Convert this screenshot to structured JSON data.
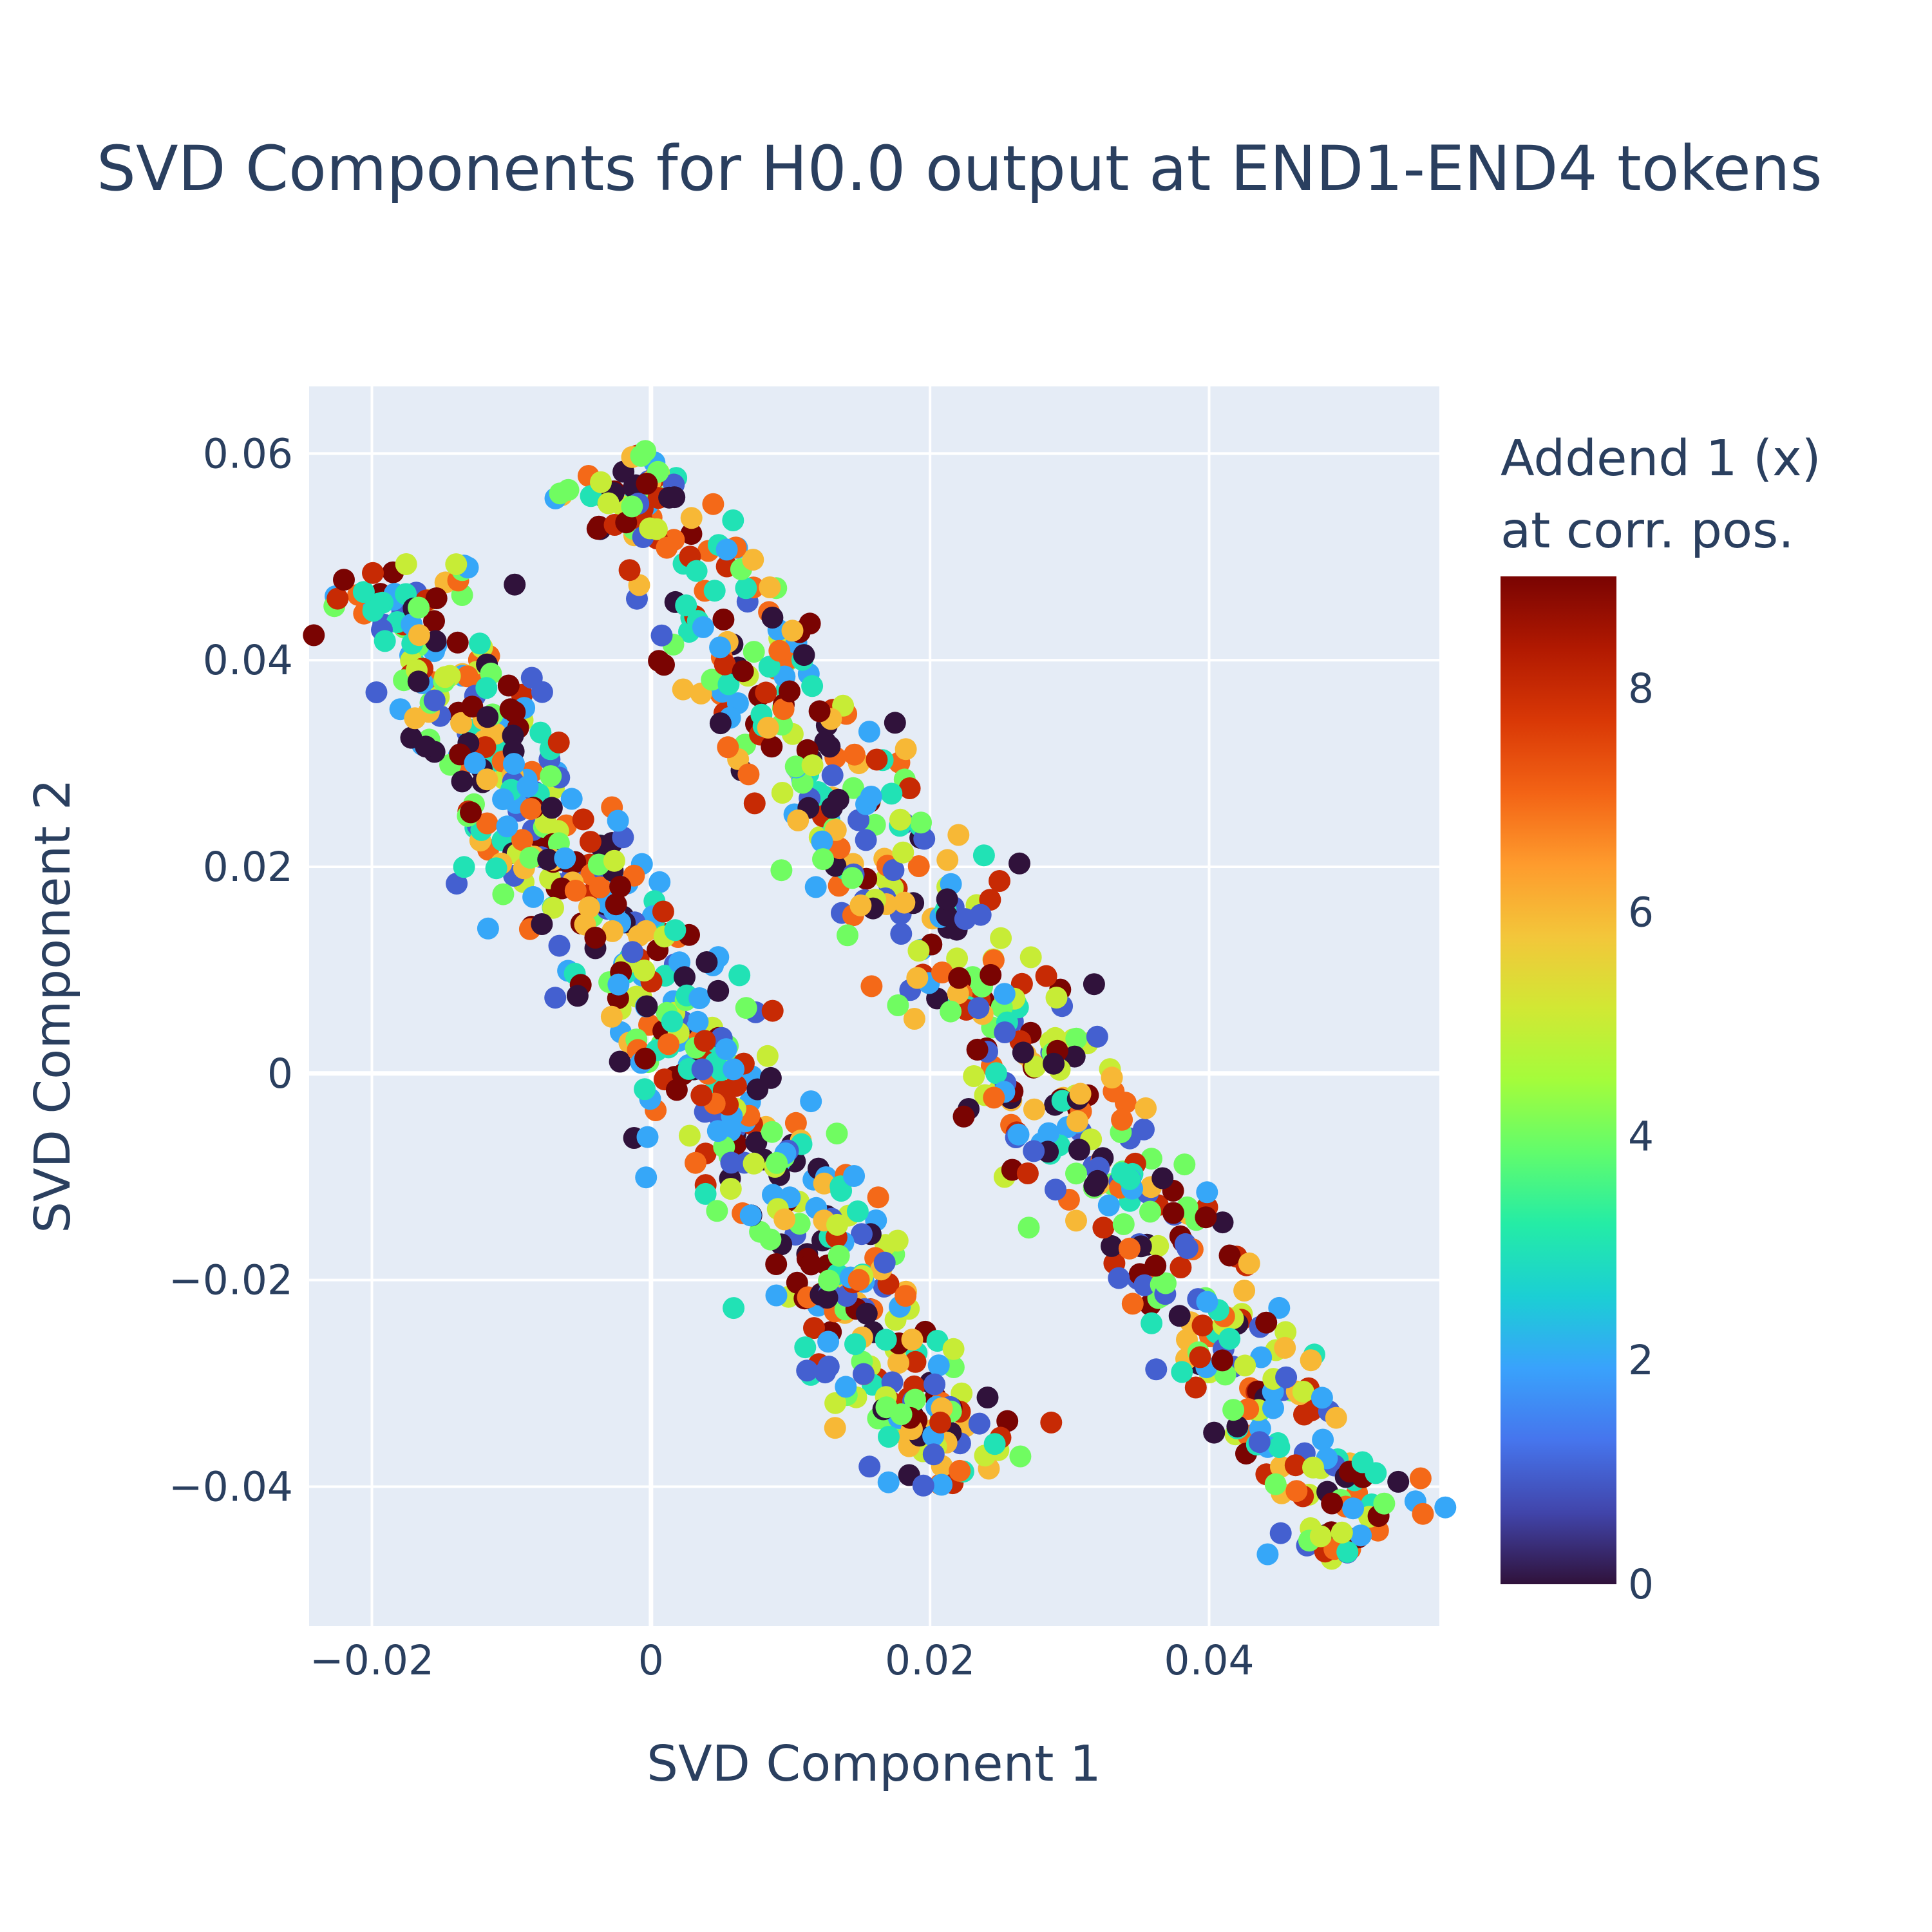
{
  "chart_data": {
    "type": "scatter",
    "title": "SVD Components for H0.0 output at END1-END4 tokens",
    "xlabel": "SVD Component 1",
    "ylabel": "SVD Component 2",
    "xlim": [
      -0.0245,
      0.0565
    ],
    "ylim": [
      -0.0535,
      0.0665
    ],
    "xticks": [
      -0.02,
      0,
      0.02,
      0.04
    ],
    "xtick_labels": [
      "−0.02",
      "0",
      "0.02",
      "0.04"
    ],
    "yticks": [
      -0.04,
      -0.02,
      0,
      0.02,
      0.04,
      0.06
    ],
    "ytick_labels": [
      "−0.04",
      "−0.02",
      "0",
      "0.02",
      "0.04",
      "0.06"
    ],
    "grid": true,
    "background_color": "#e5ecf6",
    "colorscale": "Turbo",
    "colorbar": {
      "title_lines": [
        "Addend 1 (x)",
        "at corr. pos."
      ],
      "range": [
        0,
        9
      ],
      "ticks": [
        0,
        2,
        4,
        6,
        8
      ],
      "tick_labels": [
        "0",
        "2",
        "4",
        "6",
        "8"
      ],
      "stops": [
        "#30123b",
        "#4145ab",
        "#4675ed",
        "#39a2fc",
        "#1bcfd4",
        "#24eca6",
        "#61fc6c",
        "#a4fc3b",
        "#d1e834",
        "#f3c63a",
        "#fe9b2d",
        "#f36315",
        "#d93806",
        "#b11901",
        "#7a0402"
      ]
    },
    "color_values": "Addend 1 (x), integer 0-9",
    "clusters": [
      {
        "name": "",
        "x_start": -0.0195,
        "y_start": 0.049,
        "x_end": 0.0225,
        "y_end": -0.0395,
        "spread": 0.0055,
        "count": 620
      },
      {
        "name": "",
        "x_start": -0.003,
        "y_start": 0.059,
        "x_end": 0.0515,
        "y_end": -0.046,
        "spread": 0.0058,
        "count": 600
      }
    ]
  }
}
